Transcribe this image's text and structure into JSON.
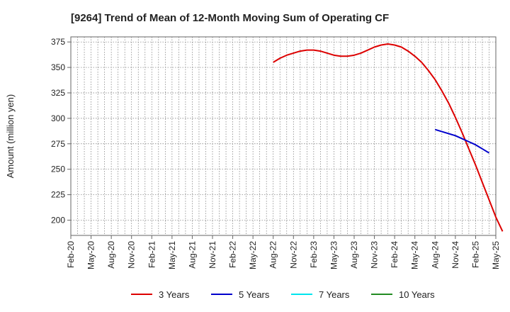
{
  "chart_data": {
    "type": "line",
    "title": "[9264]  Trend of Mean of 12-Month Moving Sum of Operating CF",
    "xlabel": "",
    "ylabel": "Amount (million yen)",
    "ylim": [
      185,
      380
    ],
    "yticks": [
      200,
      225,
      250,
      275,
      300,
      325,
      350,
      375
    ],
    "x_ticks": [
      "Feb-20",
      "May-20",
      "Aug-20",
      "Nov-20",
      "Feb-21",
      "May-21",
      "Aug-21",
      "Nov-21",
      "Feb-22",
      "May-22",
      "Aug-22",
      "Nov-22",
      "Feb-23",
      "May-23",
      "Aug-23",
      "Nov-23",
      "Feb-24",
      "May-24",
      "Aug-24",
      "Nov-24",
      "Feb-25",
      "May-25"
    ],
    "grid": true,
    "legend_position": "bottom",
    "series": [
      {
        "name": "3 Years",
        "color": "#dd0000",
        "start_index": 30,
        "values": [
          355,
          359,
          362,
          364,
          366,
          367,
          367,
          366,
          364,
          362,
          361,
          361,
          362,
          364,
          367,
          370,
          372,
          373,
          372,
          370,
          366,
          361,
          355,
          347,
          338,
          327,
          315,
          301,
          286,
          270,
          254,
          237,
          220,
          203,
          189
        ]
      },
      {
        "name": "5 Years",
        "color": "#0000cc",
        "start_index": 54,
        "values": [
          289,
          287,
          285,
          283,
          280,
          277,
          274,
          270,
          266
        ]
      },
      {
        "name": "7 Years",
        "color": "#00e5ee",
        "start_index": null,
        "values": []
      },
      {
        "name": "10 Years",
        "color": "#228b22",
        "start_index": null,
        "values": []
      }
    ]
  }
}
